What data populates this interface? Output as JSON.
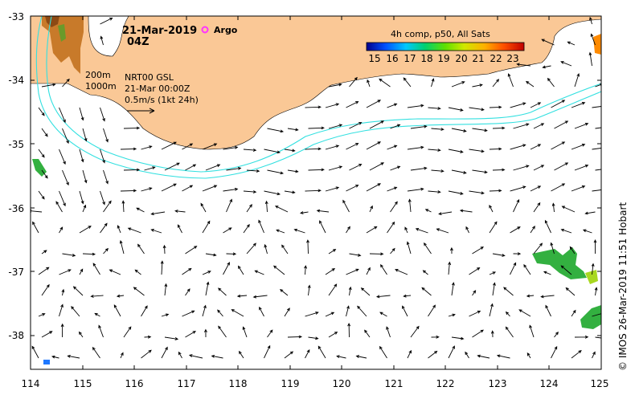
{
  "map": {
    "date": "21-Mar-2019",
    "time": "04Z",
    "argo_label": "Argo",
    "argo_color": "#ff33ff",
    "land_color": "#fac896",
    "contour_color": "#33e0e0",
    "depth_labels": [
      "200m",
      "1000m"
    ],
    "product": "NRT00 GSL",
    "product_time": "21-Mar 00:00Z",
    "scale_label": "0.5m/s (1kt 24h)",
    "credit": "© IMOS 26-Mar-2019 11:51 Hobart"
  },
  "legend": {
    "title": "4h comp, p50, All Sats",
    "ticks": [
      "15",
      "16",
      "17",
      "18",
      "19",
      "20",
      "21",
      "22",
      "23"
    ],
    "colors": [
      "#00008c",
      "#0050ff",
      "#00c8ff",
      "#00d070",
      "#60e000",
      "#d0e800",
      "#ffb000",
      "#ff5000",
      "#c00000"
    ]
  },
  "axes": {
    "lon_labels": [
      "114",
      "115",
      "116",
      "117",
      "118",
      "119",
      "120",
      "121",
      "122",
      "123",
      "124",
      "125"
    ],
    "lat_labels": [
      "-33",
      "-34",
      "-35",
      "-36",
      "-37",
      "-38"
    ]
  }
}
